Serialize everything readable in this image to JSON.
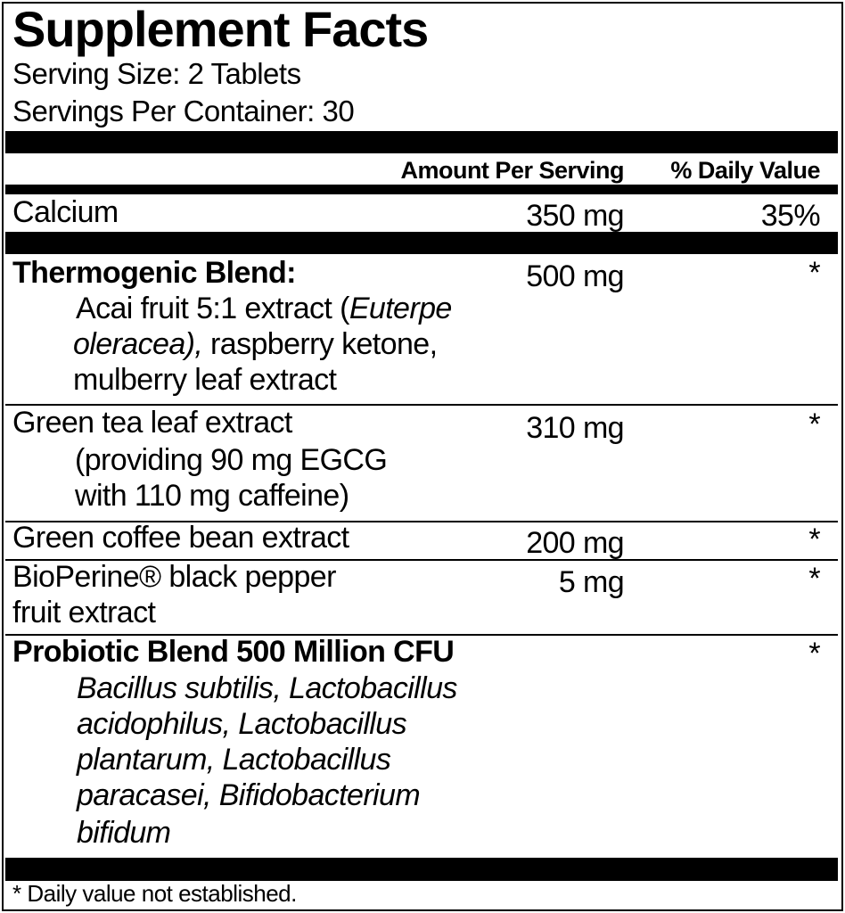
{
  "label": {
    "title": "Supplement Facts",
    "serving_size": "Serving Size: 2 Tablets",
    "servings_per_container": "Servings Per Container: 30",
    "header": {
      "amount": "Amount Per Serving",
      "daily_value": "% Daily Value"
    },
    "calcium": {
      "name": "Calcium",
      "amount": "350 mg",
      "dv": "35%"
    },
    "thermogenic": {
      "name": "Thermogenic  Blend:",
      "amount": "500 mg",
      "dv": "*",
      "line1_a": "Acai fruit 5:1 extract (",
      "line1_b": "Euterpe",
      "line2_a": "oleracea),",
      "line2_b": " raspberry ketone,",
      "line3": "mulberry leaf extract"
    },
    "green_tea": {
      "name": "Green tea leaf extract",
      "amount": "310 mg",
      "dv": "*",
      "line2": "(providing 90 mg EGCG",
      "line3": "with 110 mg caffeine)"
    },
    "green_coffee": {
      "name": "Green coffee bean extract",
      "amount": "200 mg",
      "dv": "*"
    },
    "bioperine": {
      "line1": "BioPerine® black pepper",
      "line2": "fruit extract",
      "amount": "5 mg",
      "dv": "*"
    },
    "probiotic": {
      "name": "Probiotic Blend 500 Million CFU",
      "dv": "*",
      "lines": [
        "Bacillus subtilis, Lactobacillus",
        "acidophilus, Lactobacillus",
        "plantarum, Lactobacillus",
        "paracasei, Bifidobacterium",
        "bifidum"
      ]
    },
    "footnote": "* Daily value not established."
  }
}
